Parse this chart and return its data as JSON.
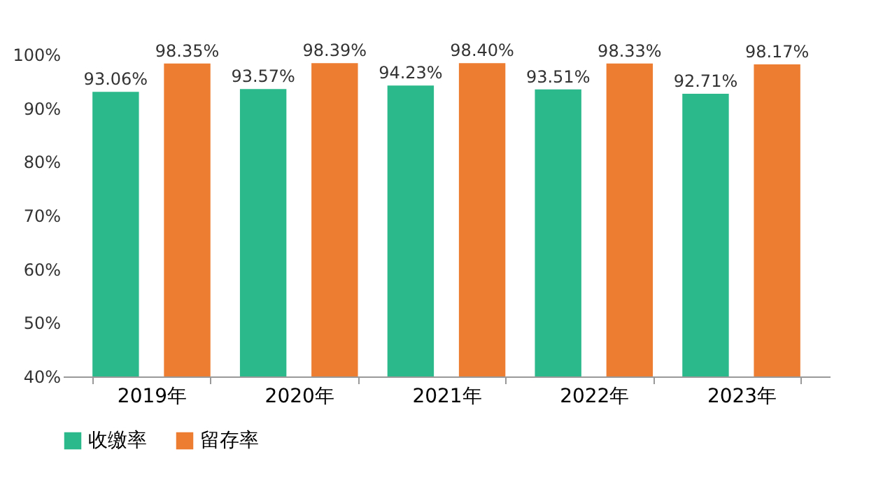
{
  "chart_data": {
    "type": "bar",
    "categories": [
      "2019年",
      "2020年",
      "2021年",
      "2022年",
      "2023年"
    ],
    "series": [
      {
        "name": "收缴率",
        "color": "#2bb88a",
        "values": [
          93.06,
          93.57,
          94.23,
          93.51,
          92.71
        ],
        "value_labels": [
          "93.06%",
          "93.57%",
          "94.23%",
          "93.51%",
          "92.71%"
        ]
      },
      {
        "name": "留存率",
        "color": "#ed7d31",
        "values": [
          98.35,
          98.39,
          98.4,
          98.33,
          98.17
        ],
        "value_labels": [
          "98.35%",
          "98.39%",
          "98.40%",
          "98.33%",
          "98.17%"
        ]
      }
    ],
    "ylim": [
      40,
      100
    ],
    "yticks": [
      {
        "value": 40,
        "label": "40%"
      },
      {
        "value": 50,
        "label": "50%"
      },
      {
        "value": 60,
        "label": "60%"
      },
      {
        "value": 70,
        "label": "70%"
      },
      {
        "value": 80,
        "label": "80%"
      },
      {
        "value": 90,
        "label": "90%"
      },
      {
        "value": 100,
        "label": "100%"
      }
    ],
    "grid": false,
    "legend": "bottom"
  }
}
